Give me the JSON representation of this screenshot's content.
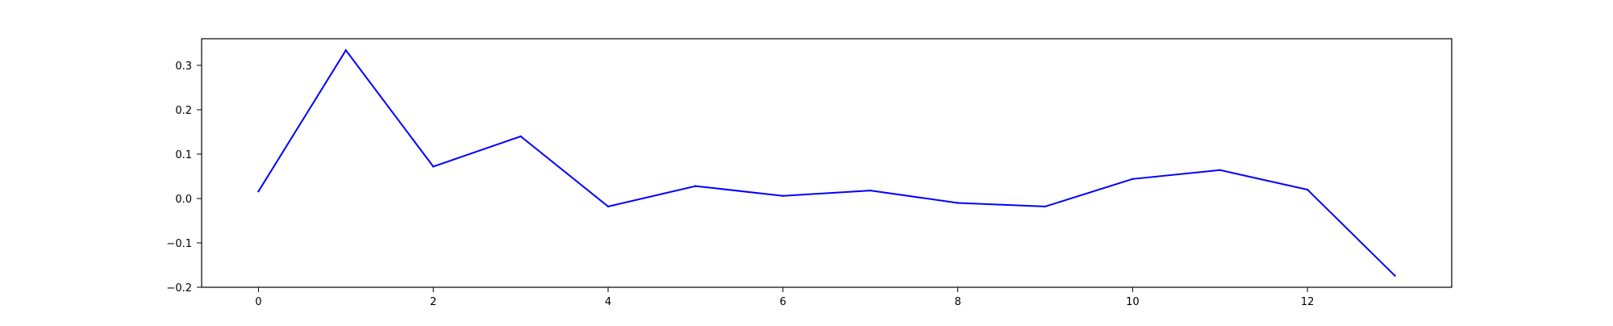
{
  "chart_data": {
    "type": "line",
    "title": "",
    "xlabel": "",
    "ylabel": "",
    "x": [
      0,
      1,
      2,
      3,
      4,
      5,
      6,
      7,
      8,
      9,
      10,
      11,
      12,
      13
    ],
    "series": [
      {
        "values": [
          0.016,
          0.334,
          0.072,
          0.14,
          -0.018,
          0.028,
          0.006,
          0.018,
          -0.01,
          -0.018,
          0.044,
          0.064,
          0.02,
          -0.174
        ],
        "color": "#0000ff"
      }
    ],
    "xlim": [
      -0.65,
      13.65
    ],
    "ylim": [
      -0.2,
      0.36
    ],
    "xticks": [
      0,
      2,
      4,
      6,
      8,
      10,
      12
    ],
    "xtick_labels": [
      "0",
      "2",
      "4",
      "6",
      "8",
      "10",
      "12"
    ],
    "yticks": [
      -0.2,
      -0.1,
      0.0,
      0.1,
      0.2,
      0.3
    ],
    "ytick_labels": [
      "−0.2",
      "−0.1",
      "0.0",
      "0.1",
      "0.2",
      "0.3"
    ],
    "grid": false,
    "legend": "none"
  }
}
